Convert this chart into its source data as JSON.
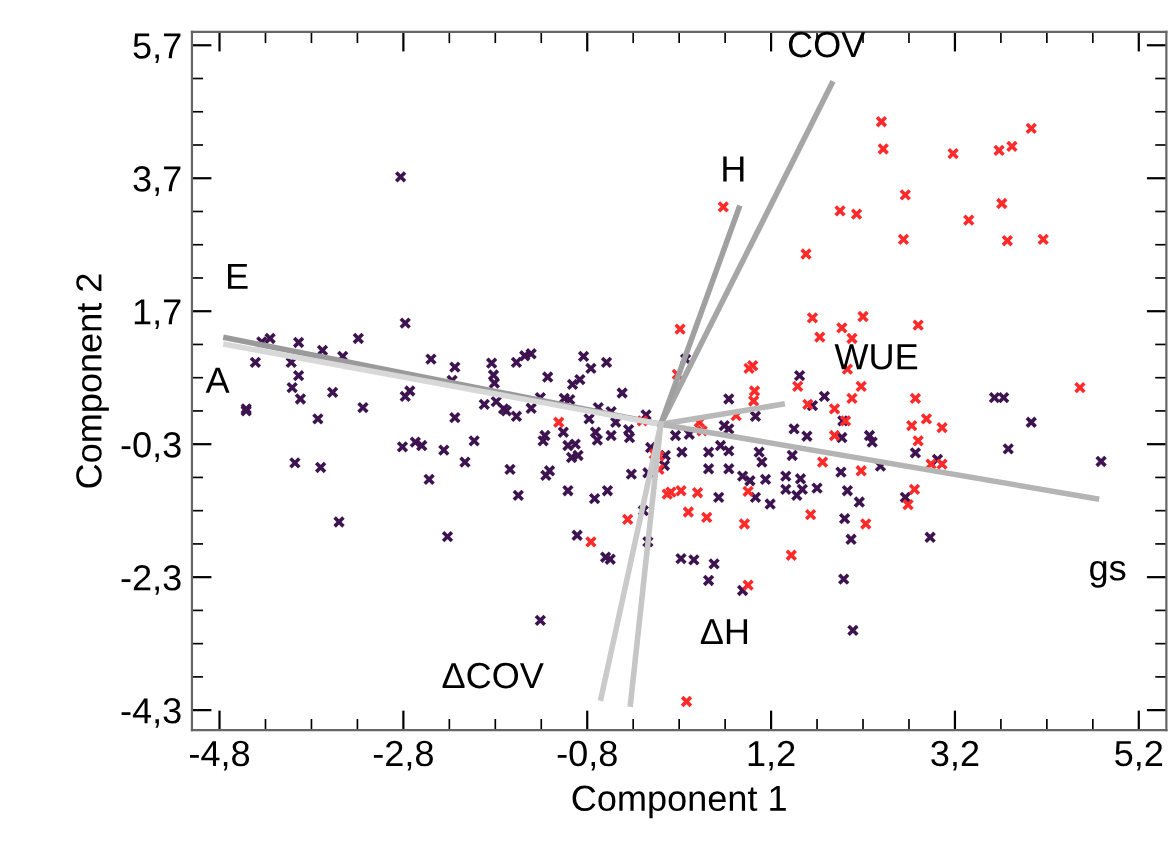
{
  "chart_data": {
    "type": "scatter",
    "xlabel": "Component 1",
    "ylabel": "Component 2",
    "marker": "cross",
    "grid": false,
    "xlim": [
      -5.1,
      5.5
    ],
    "ylim": [
      -4.6,
      5.9
    ],
    "xticks": [
      {
        "value": -4.8,
        "label": "-4,8"
      },
      {
        "value": -2.8,
        "label": "-2,8"
      },
      {
        "value": -0.8,
        "label": "-0,8"
      },
      {
        "value": 1.2,
        "label": "1,2"
      },
      {
        "value": 3.2,
        "label": "3,2"
      },
      {
        "value": 5.2,
        "label": "5,2"
      }
    ],
    "yticks": [
      {
        "value": -4.3,
        "label": "-4,3"
      },
      {
        "value": -2.3,
        "label": "-2,3"
      },
      {
        "value": -0.3,
        "label": "-0,3"
      },
      {
        "value": 1.7,
        "label": "1,7"
      },
      {
        "value": 3.7,
        "label": "3,7"
      },
      {
        "value": 5.7,
        "label": "5,7"
      }
    ],
    "series": [
      {
        "color": "#3d1450",
        "x": [
          -2.83,
          -2.78,
          -4.34,
          -4.25,
          -4.41,
          -3.94,
          -4.02,
          -3.68,
          -3.46,
          -3.29,
          -3.94,
          -4.01,
          -3.92,
          -3.57,
          -3.24,
          -4.51,
          -2.78,
          -2.73,
          -2.5,
          -2.24,
          -2.27,
          -1.84,
          -1.82,
          -1.81,
          -1.79,
          -1.92,
          -1.57,
          -1.48,
          -1.41,
          -1.23,
          -1.31,
          -1.05,
          -0.99,
          -0.96,
          -0.88,
          -0.84,
          -0.76,
          -0.59,
          -0.42,
          -0.68,
          -1.71,
          -1.41,
          -4.51,
          -3.98,
          -3.7,
          -3.73,
          -3.5,
          -2.81,
          -2.67,
          -2.6,
          -2.52,
          -2.36,
          -2.24,
          -2.03,
          -2.13,
          -2.32,
          -1.68,
          -1.57,
          -1.55,
          -1.64,
          -1.26,
          -1.28,
          -1.21,
          -1.25,
          -1.06,
          -1.01,
          -0.93,
          -0.97,
          -0.9,
          -0.78,
          -0.71,
          -0.69,
          -1.01,
          -0.72,
          -0.58,
          -0.91,
          -0.6,
          -0.55,
          -1.31,
          -0.54,
          -0.49,
          -0.35,
          -0.34,
          -0.54,
          -0.16,
          -0.11,
          -0.14,
          -0.14,
          -0.32,
          -0.19,
          0.05,
          1.51,
          0.74,
          1.78,
          1.65,
          3.63,
          3.73,
          0.27,
          1.03,
          1.45,
          1.59,
          0.16,
          0.31,
          0.69,
          0.74,
          0.23,
          0.52,
          0.65,
          0.74,
          1.07,
          1.1,
          1.43,
          1.97,
          1.98,
          2.27,
          2.3,
          2.39,
          1.96,
          2.77,
          3.01,
          0.52,
          0.74,
          0.89,
          0.97,
          1.14,
          1.36,
          1.52,
          1.7,
          1.36,
          1.48,
          1.54,
          1.03,
          1.19,
          0.63,
          0.04,
          2.03,
          2.16,
          2.0,
          2.07,
          2.66,
          2.93,
          4.03,
          3.78,
          4.79,
          0.22,
          0.36,
          0.58,
          0.52,
          0.89,
          1.99,
          2.09
        ],
        "values": [
          3.72,
          1.52,
          1.24,
          1.29,
          0.93,
          1.23,
          0.93,
          1.11,
          1.02,
          1.29,
          0.73,
          0.55,
          0.38,
          0.48,
          0.25,
          0.23,
          0.42,
          0.5,
          0.98,
          0.86,
          0.66,
          0.92,
          0.74,
          0.62,
          0.34,
          0.3,
          0.93,
          1.03,
          1.06,
          0.71,
          0.4,
          0.39,
          0.37,
          0.6,
          0.67,
          1.02,
          0.84,
          0.93,
          0.47,
          0.25,
          0.23,
          0.24,
          0.2,
          -0.58,
          -0.65,
          0.08,
          -1.47,
          -0.34,
          -0.27,
          -0.32,
          -0.83,
          -0.39,
          0.1,
          -0.25,
          -0.57,
          -1.69,
          0.2,
          0.12,
          -1.07,
          -0.68,
          -0.17,
          -0.25,
          -0.7,
          -0.77,
          -0.12,
          -0.32,
          -0.3,
          -0.5,
          -0.47,
          0.08,
          -0.12,
          -0.24,
          -1.0,
          -1.12,
          -1.0,
          -1.67,
          -2.0,
          -2.03,
          -2.95,
          0.19,
          0.03,
          -0.08,
          -0.2,
          -0.17,
          0.14,
          -0.35,
          -0.73,
          -1.77,
          -0.75,
          -1.3,
          -0.47,
          0.73,
          0.38,
          0.42,
          0.28,
          0.4,
          0.4,
          0.98,
          0.12,
          -0.07,
          -0.18,
          -0.17,
          -0.15,
          -0.02,
          -0.07,
          -0.42,
          -0.42,
          -0.32,
          -0.4,
          -0.42,
          -0.57,
          -0.47,
          -0.2,
          0.05,
          -0.17,
          -0.27,
          -0.63,
          -0.72,
          -0.43,
          -0.53,
          -0.67,
          -0.67,
          -0.78,
          -0.85,
          -0.83,
          -0.78,
          -0.82,
          -0.96,
          -0.98,
          -1.07,
          -0.98,
          -1.1,
          -1.2,
          -1.1,
          -0.62,
          -1.0,
          -1.17,
          -1.42,
          -1.73,
          -1.1,
          -1.7,
          0.03,
          -0.37,
          -0.56,
          -2.02,
          -2.04,
          -2.1,
          -2.35,
          -2.5,
          -2.33,
          -3.1
        ]
      },
      {
        "color": "#ff2a2a",
        "x": [
          -1.11,
          -0.76,
          -0.36,
          -0.2,
          -0.07,
          -0.02,
          -0.02,
          0.07,
          2.4,
          2.42,
          3.18,
          3.68,
          3.82,
          4.03,
          0.68,
          2.66,
          1.95,
          2.13,
          3.35,
          3.71,
          2.64,
          3.77,
          4.16,
          1.58,
          1.65,
          2.2,
          1.97,
          1.73,
          2.08,
          2.8,
          0.21,
          0.18,
          0.96,
          1.0,
          1.02,
          1.01,
          1.49,
          2.03,
          2.18,
          2.08,
          2.77,
          4.56,
          1.6,
          1.89,
          0.42,
          0.45,
          0.82,
          2.01,
          1.89,
          2.73,
          2.89,
          2.8,
          3.06,
          1.76,
          2.18,
          2.94,
          3.06,
          0.11,
          0.22,
          0.4,
          0.3,
          0.5,
          0.95,
          0.91,
          1.63,
          2.23,
          2.76,
          2.69,
          1.42,
          0.95,
          0.28
        ],
        "values": [
          0.03,
          -1.77,
          -1.43,
          0.05,
          -0.45,
          -0.48,
          -0.68,
          -1.05,
          4.55,
          4.14,
          4.07,
          4.12,
          4.18,
          4.45,
          3.27,
          3.45,
          3.21,
          3.16,
          3.07,
          3.32,
          2.78,
          2.76,
          2.78,
          2.56,
          1.6,
          1.62,
          1.45,
          1.31,
          1.29,
          1.49,
          1.43,
          0.75,
          0.84,
          0.88,
          0.5,
          0.35,
          0.57,
          0.83,
          0.57,
          0.39,
          0.39,
          0.55,
          0.3,
          0.23,
          0.03,
          -0.1,
          0.13,
          0.05,
          -0.17,
          -0.02,
          0.08,
          -0.25,
          -0.05,
          -0.57,
          -0.7,
          -0.6,
          -0.6,
          -1.02,
          -1.0,
          -1.03,
          -1.32,
          -1.4,
          -1.01,
          -1.5,
          -1.36,
          -1.5,
          -0.98,
          -1.21,
          -1.97,
          -2.42,
          -4.17
        ]
      },
      {
        "type": "line",
        "name": "E",
        "marker": "none",
        "color": "#9a9a9a",
        "x": [
          0,
          -4.73
        ],
        "values": [
          0,
          1.3
        ]
      },
      {
        "type": "line",
        "name": "A",
        "marker": "none",
        "color": "#d8d8d8",
        "x": [
          0,
          -4.73
        ],
        "values": [
          0,
          1.2
        ]
      },
      {
        "type": "line",
        "name": "COV",
        "marker": "none",
        "color": "#a6a6a6",
        "x": [
          0,
          1.86
        ],
        "values": [
          0,
          5.12
        ]
      },
      {
        "type": "line",
        "name": "H",
        "marker": "none",
        "color": "#a0a0a0",
        "x": [
          0,
          0.85
        ],
        "values": [
          0,
          3.25
        ]
      },
      {
        "type": "line",
        "name": "WUE",
        "marker": "none",
        "color": "#b9b9b9",
        "x": [
          0,
          1.32
        ],
        "values": [
          0,
          0.3
        ]
      },
      {
        "type": "line",
        "name": "gs",
        "marker": "none",
        "color": "#b4b4b4",
        "x": [
          0,
          4.74
        ],
        "values": [
          0,
          -1.12
        ]
      },
      {
        "type": "line",
        "name": "ΔCOV",
        "marker": "none",
        "color": "#cacaca",
        "x": [
          0,
          -0.65
        ],
        "values": [
          0,
          -4.12
        ]
      },
      {
        "type": "line",
        "name": "ΔH",
        "marker": "none",
        "color": "#c6c6c6",
        "x": [
          0,
          -0.33
        ],
        "values": [
          0,
          -4.21
        ]
      }
    ]
  }
}
